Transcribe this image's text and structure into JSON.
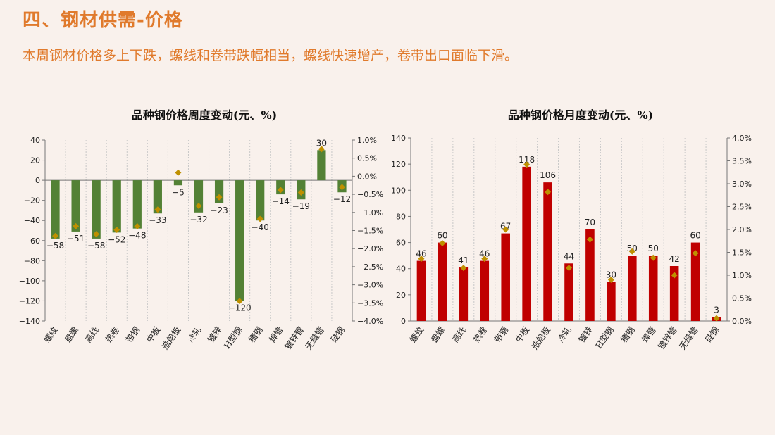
{
  "header": {
    "title": "四、钢材供需-价格",
    "subtitle": "本周钢材价格多上下跌，螺线和卷带跌幅相当，螺线快速增产，卷带出口面临下滑。"
  },
  "colors": {
    "accent": "#e07a2c",
    "weekly_bar": "#538135",
    "monthly_bar": "#c00000",
    "marker": "#bf9000",
    "background": "#f9f1ec"
  },
  "chart_data": [
    {
      "type": "bar",
      "title": "品种钢价格周度变动(元、%)",
      "categories": [
        "螺纹",
        "盘螺",
        "高线",
        "热卷",
        "带钢",
        "中板",
        "造船板",
        "冷轧",
        "镀锌",
        "H型钢",
        "槽钢",
        "焊管",
        "镀锌管",
        "无缝管",
        "硅钢"
      ],
      "series": [
        {
          "kind": "bar",
          "axis": "left",
          "values": [
            -58,
            -51,
            -58,
            -52,
            -48,
            -33,
            -5,
            -32,
            -23,
            -120,
            -40,
            -14,
            -19,
            30,
            -12
          ]
        },
        {
          "kind": "marker",
          "axis": "right",
          "values": [
            -1.65,
            -1.38,
            -1.6,
            -1.48,
            -1.38,
            -0.92,
            0.1,
            -0.82,
            -0.58,
            -3.45,
            -1.18,
            -0.38,
            -0.45,
            0.75,
            -0.3
          ]
        }
      ],
      "ylim": [
        -140,
        40
      ],
      "yticks": [
        40,
        20,
        0,
        -20,
        -40,
        -60,
        -80,
        -100,
        -120,
        -140
      ],
      "y2lim": [
        -4.0,
        1.0
      ],
      "y2ticks": [
        "1.0%",
        "0.5%",
        "0.0%",
        "-0.5%",
        "-1.0%",
        "-1.5%",
        "-2.0%",
        "-2.5%",
        "-3.0%",
        "-3.5%",
        "-4.0%"
      ],
      "grid": "vertical-dotted"
    },
    {
      "type": "bar",
      "title": "品种钢价格月度变动(元、%)",
      "categories": [
        "螺纹",
        "盘螺",
        "高线",
        "热卷",
        "带钢",
        "中板",
        "造船板",
        "冷轧",
        "镀锌",
        "H型钢",
        "槽钢",
        "焊管",
        "镀锌管",
        "无缝管",
        "硅钢"
      ],
      "series": [
        {
          "kind": "bar",
          "axis": "left",
          "values": [
            46,
            60,
            41,
            46,
            67,
            118,
            106,
            44,
            70,
            30,
            50,
            50,
            42,
            60,
            3
          ]
        },
        {
          "kind": "marker",
          "axis": "right",
          "values": [
            1.36,
            1.7,
            1.16,
            1.36,
            2.0,
            3.42,
            2.82,
            1.16,
            1.78,
            0.9,
            1.52,
            1.38,
            1.0,
            1.48,
            0.06
          ]
        }
      ],
      "ylim": [
        0,
        140
      ],
      "yticks": [
        140,
        120,
        100,
        80,
        60,
        40,
        20,
        0
      ],
      "y2lim": [
        0.0,
        4.0
      ],
      "y2ticks": [
        "4.0%",
        "3.5%",
        "3.0%",
        "2.5%",
        "2.0%",
        "1.5%",
        "1.0%",
        "0.5%",
        "0.0%"
      ],
      "grid": "vertical-dotted"
    }
  ]
}
